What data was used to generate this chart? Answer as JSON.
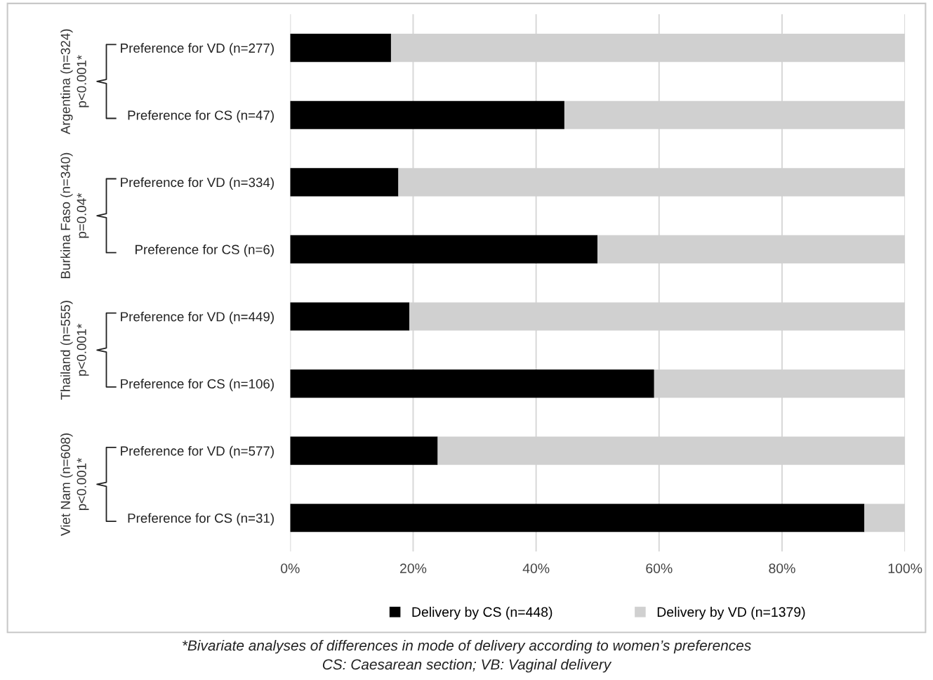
{
  "chart_data": {
    "type": "bar",
    "orientation": "horizontal",
    "stacked": true,
    "categories": [
      "Preference for VD (n=277)",
      "Preference for CS (n=47)",
      "Preference for VD (n=334)",
      "Preference for CS (n=6)",
      "Preference for VD (n=449)",
      "Preference for CS (n=106)",
      "Preference for VD (n=577)",
      "Preference for CS (n=31)"
    ],
    "series": [
      {
        "name": "Delivery by CS (n=448)",
        "color": "#000000",
        "values": [
          16.4,
          44.6,
          17.6,
          50,
          19.4,
          59.2,
          24.0,
          93.4
        ]
      },
      {
        "name": "Delivery by VD (n=1379)",
        "color": "#d0d0d0",
        "values": [
          83.6,
          55.4,
          82.4,
          50,
          80.6,
          40.8,
          76.0,
          6.6
        ]
      }
    ],
    "xlim": [
      0,
      100
    ],
    "xticks": [
      {
        "value": 0,
        "label": "0%"
      },
      {
        "value": 20,
        "label": "20%"
      },
      {
        "value": 40,
        "label": "40%"
      },
      {
        "value": 60,
        "label": "60%"
      },
      {
        "value": 80,
        "label": "80%"
      },
      {
        "value": 100,
        "label": "100%"
      }
    ],
    "grid": "x",
    "legend": "bottom",
    "annotations": [
      "Argentina (n=324)\np<0.001*",
      "Burkina Faso (n=340)\np=0.04*",
      "Thailand (n=555)\np<0.001*",
      "Viet Nam (n=608)\np<0.001*",
      "*Bivariate analyses of differences in mode of delivery according to women’s preferences\nCS: Caesarean section; VB: Vaginal delivery"
    ]
  }
}
